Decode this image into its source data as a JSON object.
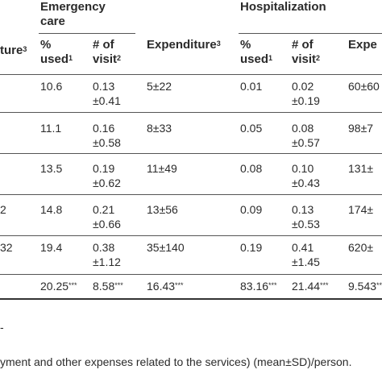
{
  "groups": {
    "emergency": "Emergency care",
    "hospital": "Hospitalization"
  },
  "columns": {
    "expenditure_clipped": "ture",
    "pct_used": "% used",
    "visits": "# of visit",
    "expenditure": "Expenditure",
    "expenditure_right_clipped": "Expe",
    "sup_pct": "1",
    "sup_visit": "2",
    "sup_exp": "3"
  },
  "rows": [
    {
      "left": "",
      "er_pct": "10.6",
      "er_v1": "0.13",
      "er_v2": "±0.41",
      "er_exp": "5±22",
      "h_pct": "0.01",
      "h_v1": "0.02",
      "h_v2": "±0.19",
      "h_exp": "60±60"
    },
    {
      "left": "",
      "er_pct": "11.1",
      "er_v1": "0.16",
      "er_v2": "±0.58",
      "er_exp": "8±33",
      "h_pct": "0.05",
      "h_v1": "0.08",
      "h_v2": "±0.57",
      "h_exp": "98±7"
    },
    {
      "left": "",
      "er_pct": "13.5",
      "er_v1": "0.19",
      "er_v2": "±0.62",
      "er_exp": "11±49",
      "h_pct": "0.08",
      "h_v1": "0.10",
      "h_v2": "±0.43",
      "h_exp": "131±"
    },
    {
      "left": "2",
      "er_pct": "14.8",
      "er_v1": "0.21",
      "er_v2": "±0.66",
      "er_exp": "13±56",
      "h_pct": "0.09",
      "h_v1": "0.13",
      "h_v2": "±0.53",
      "h_exp": "174±"
    },
    {
      "left": "32",
      "er_pct": "19.4",
      "er_v1": "0.38",
      "er_v2": "±1.12",
      "er_exp": "35±140",
      "h_pct": "0.19",
      "h_v1": "0.41",
      "h_v2": "±1.45",
      "h_exp": "620±"
    }
  ],
  "stats": {
    "er_pct": "20.25",
    "er_v": "8.58",
    "er_exp": "16.43",
    "h_pct": "83.16",
    "h_v": "21.44",
    "h_exp": "9.543",
    "sig": "***"
  },
  "footnotes": {
    "dash": "-",
    "payment_note": "yment and other expenses related to the services) (mean±SD)/person."
  }
}
